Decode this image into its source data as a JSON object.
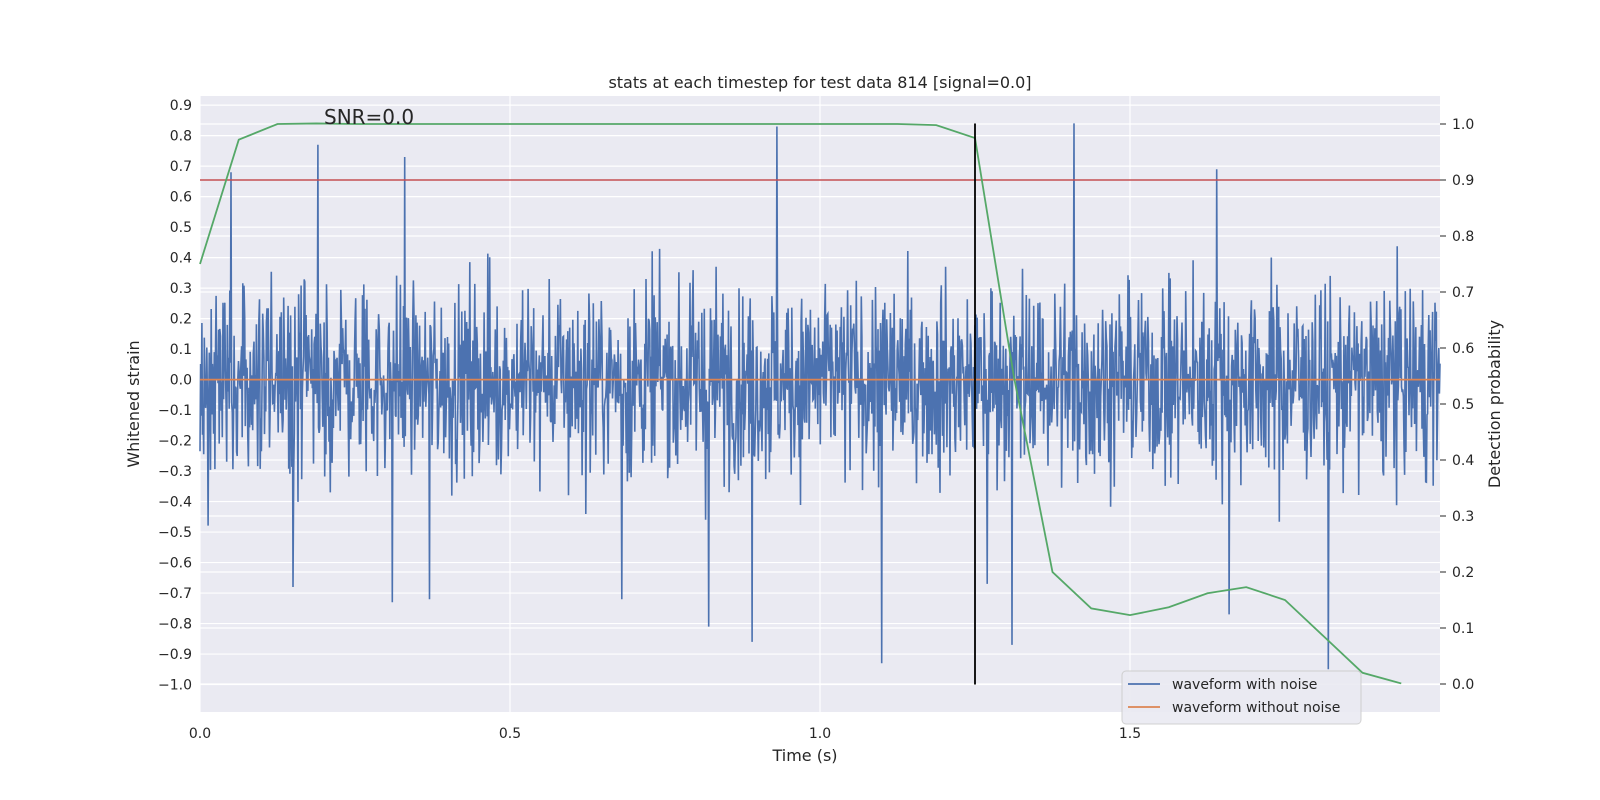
{
  "chart_data": {
    "type": "line",
    "title": "stats at each timestep for test data 814 [signal=0.0]",
    "xlabel": "Time (s)",
    "ylabel": "Whitened strain",
    "y2label": "Detection probability",
    "annotation": "SNR=0.0",
    "xlim": [
      0.0,
      2.0
    ],
    "ylim": [
      -1.09,
      0.93
    ],
    "y2lim": [
      -0.05,
      1.05
    ],
    "xticks": [
      0.0,
      0.5,
      1.0,
      1.5
    ],
    "xtick_labels": [
      "0.0",
      "0.5",
      "1.0",
      "1.5"
    ],
    "yticks": [
      0.9,
      0.8,
      0.7,
      0.6,
      0.5,
      0.4,
      0.3,
      0.2,
      0.1,
      0.0,
      -0.1,
      -0.2,
      -0.3,
      -0.4,
      -0.5,
      -0.6,
      -0.7,
      -0.8,
      -0.9,
      -1.0
    ],
    "ytick_labels": [
      "0.9",
      "0.8",
      "0.7",
      "0.6",
      "0.5",
      "0.4",
      "0.3",
      "0.2",
      "0.1",
      "0.0",
      "−0.1",
      "−0.2",
      "−0.3",
      "−0.4",
      "−0.5",
      "−0.6",
      "−0.7",
      "−0.8",
      "−0.9",
      "−1.0"
    ],
    "y2ticks": [
      1.0,
      0.9,
      0.8,
      0.7,
      0.6,
      0.5,
      0.4,
      0.3,
      0.2,
      0.1,
      0.0
    ],
    "y2tick_labels": [
      "1.0",
      "0.9",
      "0.8",
      "0.7",
      "0.6",
      "0.5",
      "0.4",
      "0.3",
      "0.2",
      "0.1",
      "0.0"
    ],
    "grid": true,
    "legend_position": "lower-right",
    "series": [
      {
        "name": "waveform with noise",
        "color": "#4c72b0",
        "kind": "noise",
        "x_start": 0.0,
        "x_end": 2.0,
        "peaks": [
          {
            "x": 0.19,
            "y": 0.77
          },
          {
            "x": 0.33,
            "y": 0.73
          },
          {
            "x": 0.93,
            "y": 0.83
          },
          {
            "x": 1.41,
            "y": 0.84
          },
          {
            "x": 0.05,
            "y": 0.68
          },
          {
            "x": 1.64,
            "y": 0.69
          },
          {
            "x": 0.31,
            "y": -0.73
          },
          {
            "x": 0.37,
            "y": -0.72
          },
          {
            "x": 0.68,
            "y": -0.72
          },
          {
            "x": 0.82,
            "y": -0.81
          },
          {
            "x": 0.89,
            "y": -0.86
          },
          {
            "x": 1.1,
            "y": -0.93
          },
          {
            "x": 1.31,
            "y": -0.87
          },
          {
            "x": 1.82,
            "y": -0.95
          },
          {
            "x": 1.66,
            "y": -0.77
          },
          {
            "x": 1.27,
            "y": -0.67
          },
          {
            "x": 0.15,
            "y": -0.68
          }
        ]
      },
      {
        "name": "waveform without noise",
        "color": "#dd8452",
        "x": [
          0.0,
          2.0
        ],
        "y": [
          0.0,
          0.0
        ]
      },
      {
        "name": "",
        "color": "#55a868",
        "axis": "right",
        "x": [
          0.0,
          0.0625,
          0.125,
          0.1875,
          0.25,
          0.3125,
          1.125,
          1.1875,
          1.25,
          1.3125,
          1.375,
          1.4375,
          1.5,
          1.5625,
          1.625,
          1.6875,
          1.75,
          1.8125,
          1.875,
          1.9375
        ],
        "y": [
          0.75,
          0.972,
          1.0,
          1.001,
          1.0,
          1.0,
          1.0,
          0.998,
          0.975,
          0.55,
          0.2,
          0.135,
          0.123,
          0.137,
          0.162,
          0.173,
          0.15,
          0.085,
          0.02,
          0.001
        ]
      },
      {
        "name": "",
        "color": "#c44e52",
        "axis": "right",
        "x": [
          0.0,
          2.0
        ],
        "y": [
          0.9,
          0.9
        ]
      }
    ],
    "vline": {
      "x": 1.25,
      "color": "#000000",
      "y_from": -1.0,
      "y_to": 0.84
    }
  }
}
